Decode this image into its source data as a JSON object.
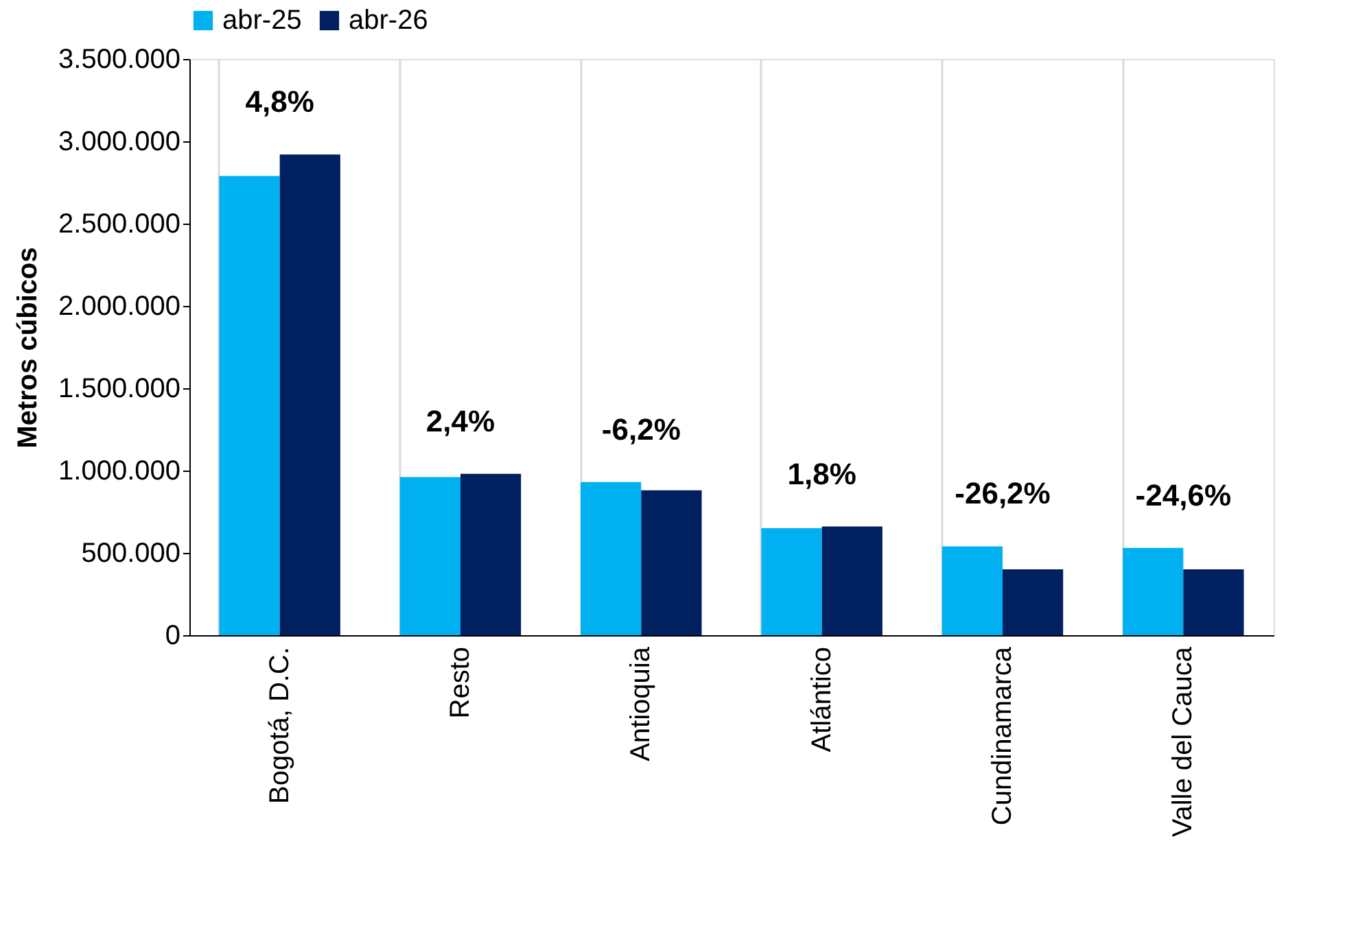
{
  "chart_data": {
    "type": "bar",
    "ylabel": "Metros cúbicos",
    "categories": [
      "Bogotá, D.C.",
      "Resto",
      "Antioquia",
      "Atlántico",
      "Cundinamarca",
      "Valle del Cauca"
    ],
    "series": [
      {
        "name": "abr-25",
        "color": "#00b0f0",
        "values": [
          2790000,
          960000,
          930000,
          650000,
          540000,
          530000
        ]
      },
      {
        "name": "abr-26",
        "color": "#002060",
        "values": [
          2920000,
          980000,
          880000,
          660000,
          400000,
          400000
        ]
      }
    ],
    "ylim": [
      0,
      3500000
    ],
    "yticks": [
      {
        "value": 0,
        "label": "0"
      },
      {
        "value": 500000,
        "label": "500.000"
      },
      {
        "value": 1000000,
        "label": "1.000.000"
      },
      {
        "value": 1500000,
        "label": "1.500.000"
      },
      {
        "value": 2000000,
        "label": "2.000.000"
      },
      {
        "value": 2500000,
        "label": "2.500.000"
      },
      {
        "value": 3000000,
        "label": "3.000.000"
      },
      {
        "value": 3500000,
        "label": "3.500.000"
      }
    ],
    "grid": "x",
    "legend": "top",
    "annotations": [
      "4,8%",
      "2,4%",
      "-6,2%",
      "1,8%",
      "-26,2%",
      "-24,6%"
    ]
  }
}
